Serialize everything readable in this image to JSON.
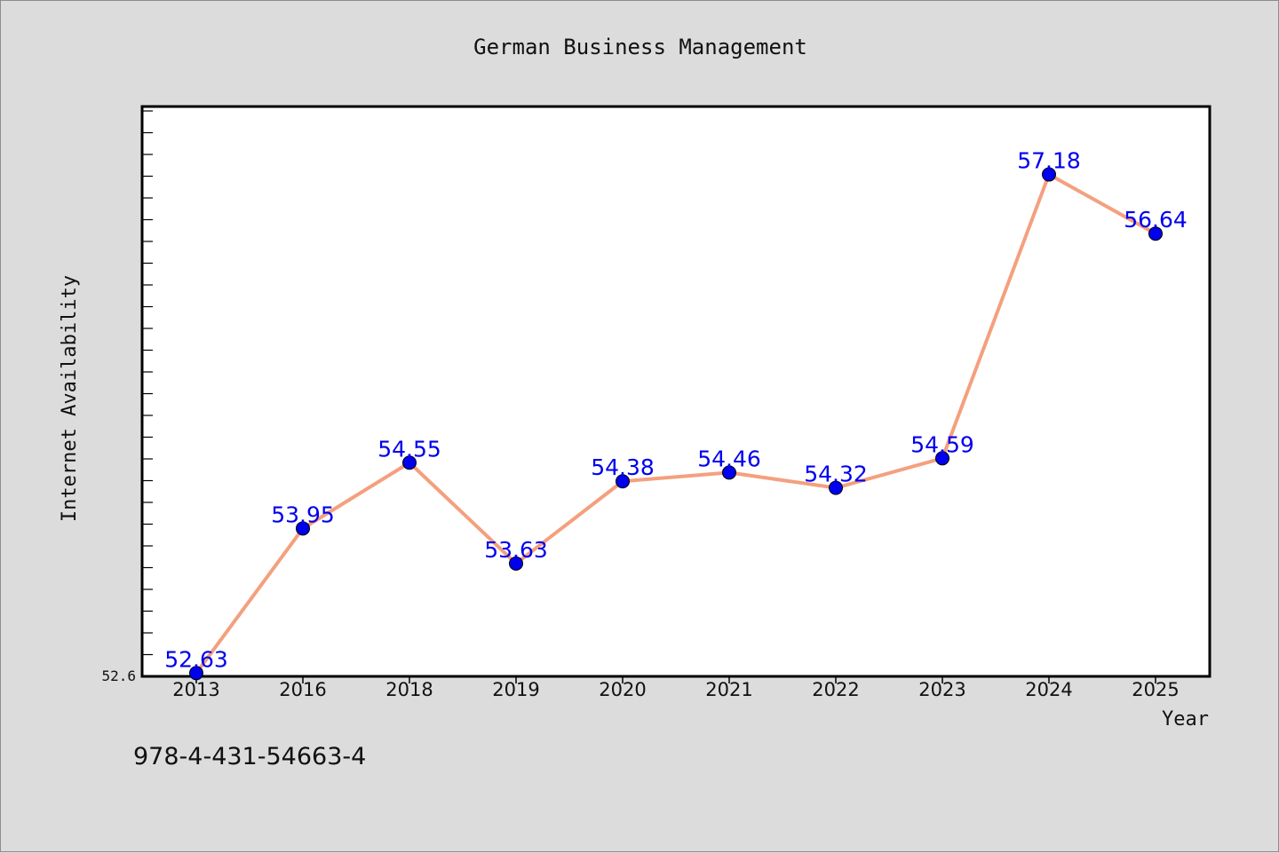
{
  "chart_data": {
    "type": "line",
    "title": "German Business Management",
    "xlabel": "Year",
    "ylabel": "Internet Availability",
    "categories": [
      "2013",
      "2016",
      "2018",
      "2019",
      "2020",
      "2021",
      "2022",
      "2023",
      "2024",
      "2025"
    ],
    "series": [
      {
        "values": [
          52.63,
          53.95,
          54.55,
          53.63,
          54.38,
          54.46,
          54.32,
          54.59,
          57.18,
          56.64
        ]
      }
    ],
    "data_labels": [
      "52.63",
      "53.95",
      "54.55",
      "53.63",
      "54.38",
      "54.46",
      "54.32",
      "54.59",
      "57.18",
      "56.64"
    ],
    "ylim": [
      52.6,
      57.8
    ],
    "y_tick_label": "52.6",
    "grid": false,
    "line_color": "#f4a07e",
    "marker_color": "#0000ee",
    "label_color": "#0000ee",
    "background": "#dcdcdc",
    "plot_background": "#ffffff"
  },
  "footer": {
    "isbn": "978-4-431-54663-4"
  }
}
